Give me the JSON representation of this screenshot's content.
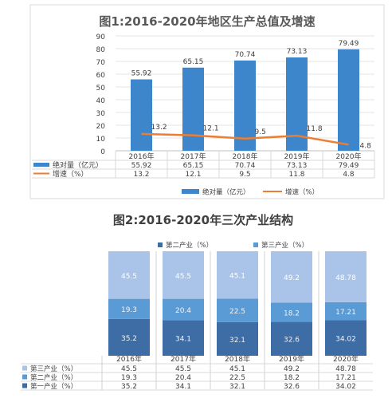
{
  "chart_data": [
    {
      "type": "bar",
      "title": "图1:2016-2020年地区生产总值及增速",
      "categories": [
        "2016年",
        "2017年",
        "2018年",
        "2019年",
        "2020年"
      ],
      "ylim": [
        0,
        90
      ],
      "yticks": [
        "0",
        "10",
        "20",
        "30",
        "40",
        "50",
        "60",
        "70",
        "80",
        "90"
      ],
      "grid": true,
      "legend_position": "bottom",
      "series": [
        {
          "name": "绝对量（亿元）",
          "kind": "bar",
          "color": "#3E86CC",
          "values": [
            55.92,
            65.15,
            70.74,
            73.13,
            79.49
          ],
          "labels": [
            "55.92",
            "65.15",
            "70.74",
            "73.13",
            "79.49"
          ]
        },
        {
          "name": "增速（%）",
          "kind": "line",
          "color": "#ED7D31",
          "values": [
            13.2,
            12.1,
            9.5,
            11.8,
            4.8
          ],
          "labels": [
            "13.2",
            "12.1",
            "9.5",
            "11.8",
            "4.8"
          ]
        }
      ]
    },
    {
      "type": "bar",
      "stacked": true,
      "title": "图2:2016-2020年三次产业结构",
      "categories": [
        "2016年",
        "2017年",
        "2018年",
        "2019年",
        "2020年"
      ],
      "legend_position": "top",
      "legend": [
        "第二产业（%）",
        "第三产业（%）"
      ],
      "series": [
        {
          "name": "第一产业（%）",
          "color": "#3E6DA6",
          "values": [
            35.2,
            34.1,
            32.1,
            32.6,
            34.02
          ],
          "labels": [
            "35.2",
            "34.1",
            "32.1",
            "32.6",
            "34.02"
          ]
        },
        {
          "name": "第二产业（%）",
          "color": "#5B9BD5",
          "values": [
            19.3,
            20.4,
            22.5,
            18.2,
            17.21
          ],
          "labels": [
            "19.3",
            "20.4",
            "22.5",
            "18.2",
            "17.21"
          ]
        },
        {
          "name": "第三产业（%）",
          "color": "#A9C4E8",
          "values": [
            45.5,
            45.5,
            45.1,
            49.2,
            48.78
          ],
          "labels": [
            "45.5",
            "45.5",
            "45.1",
            "49.2",
            "48.78"
          ]
        }
      ]
    }
  ]
}
